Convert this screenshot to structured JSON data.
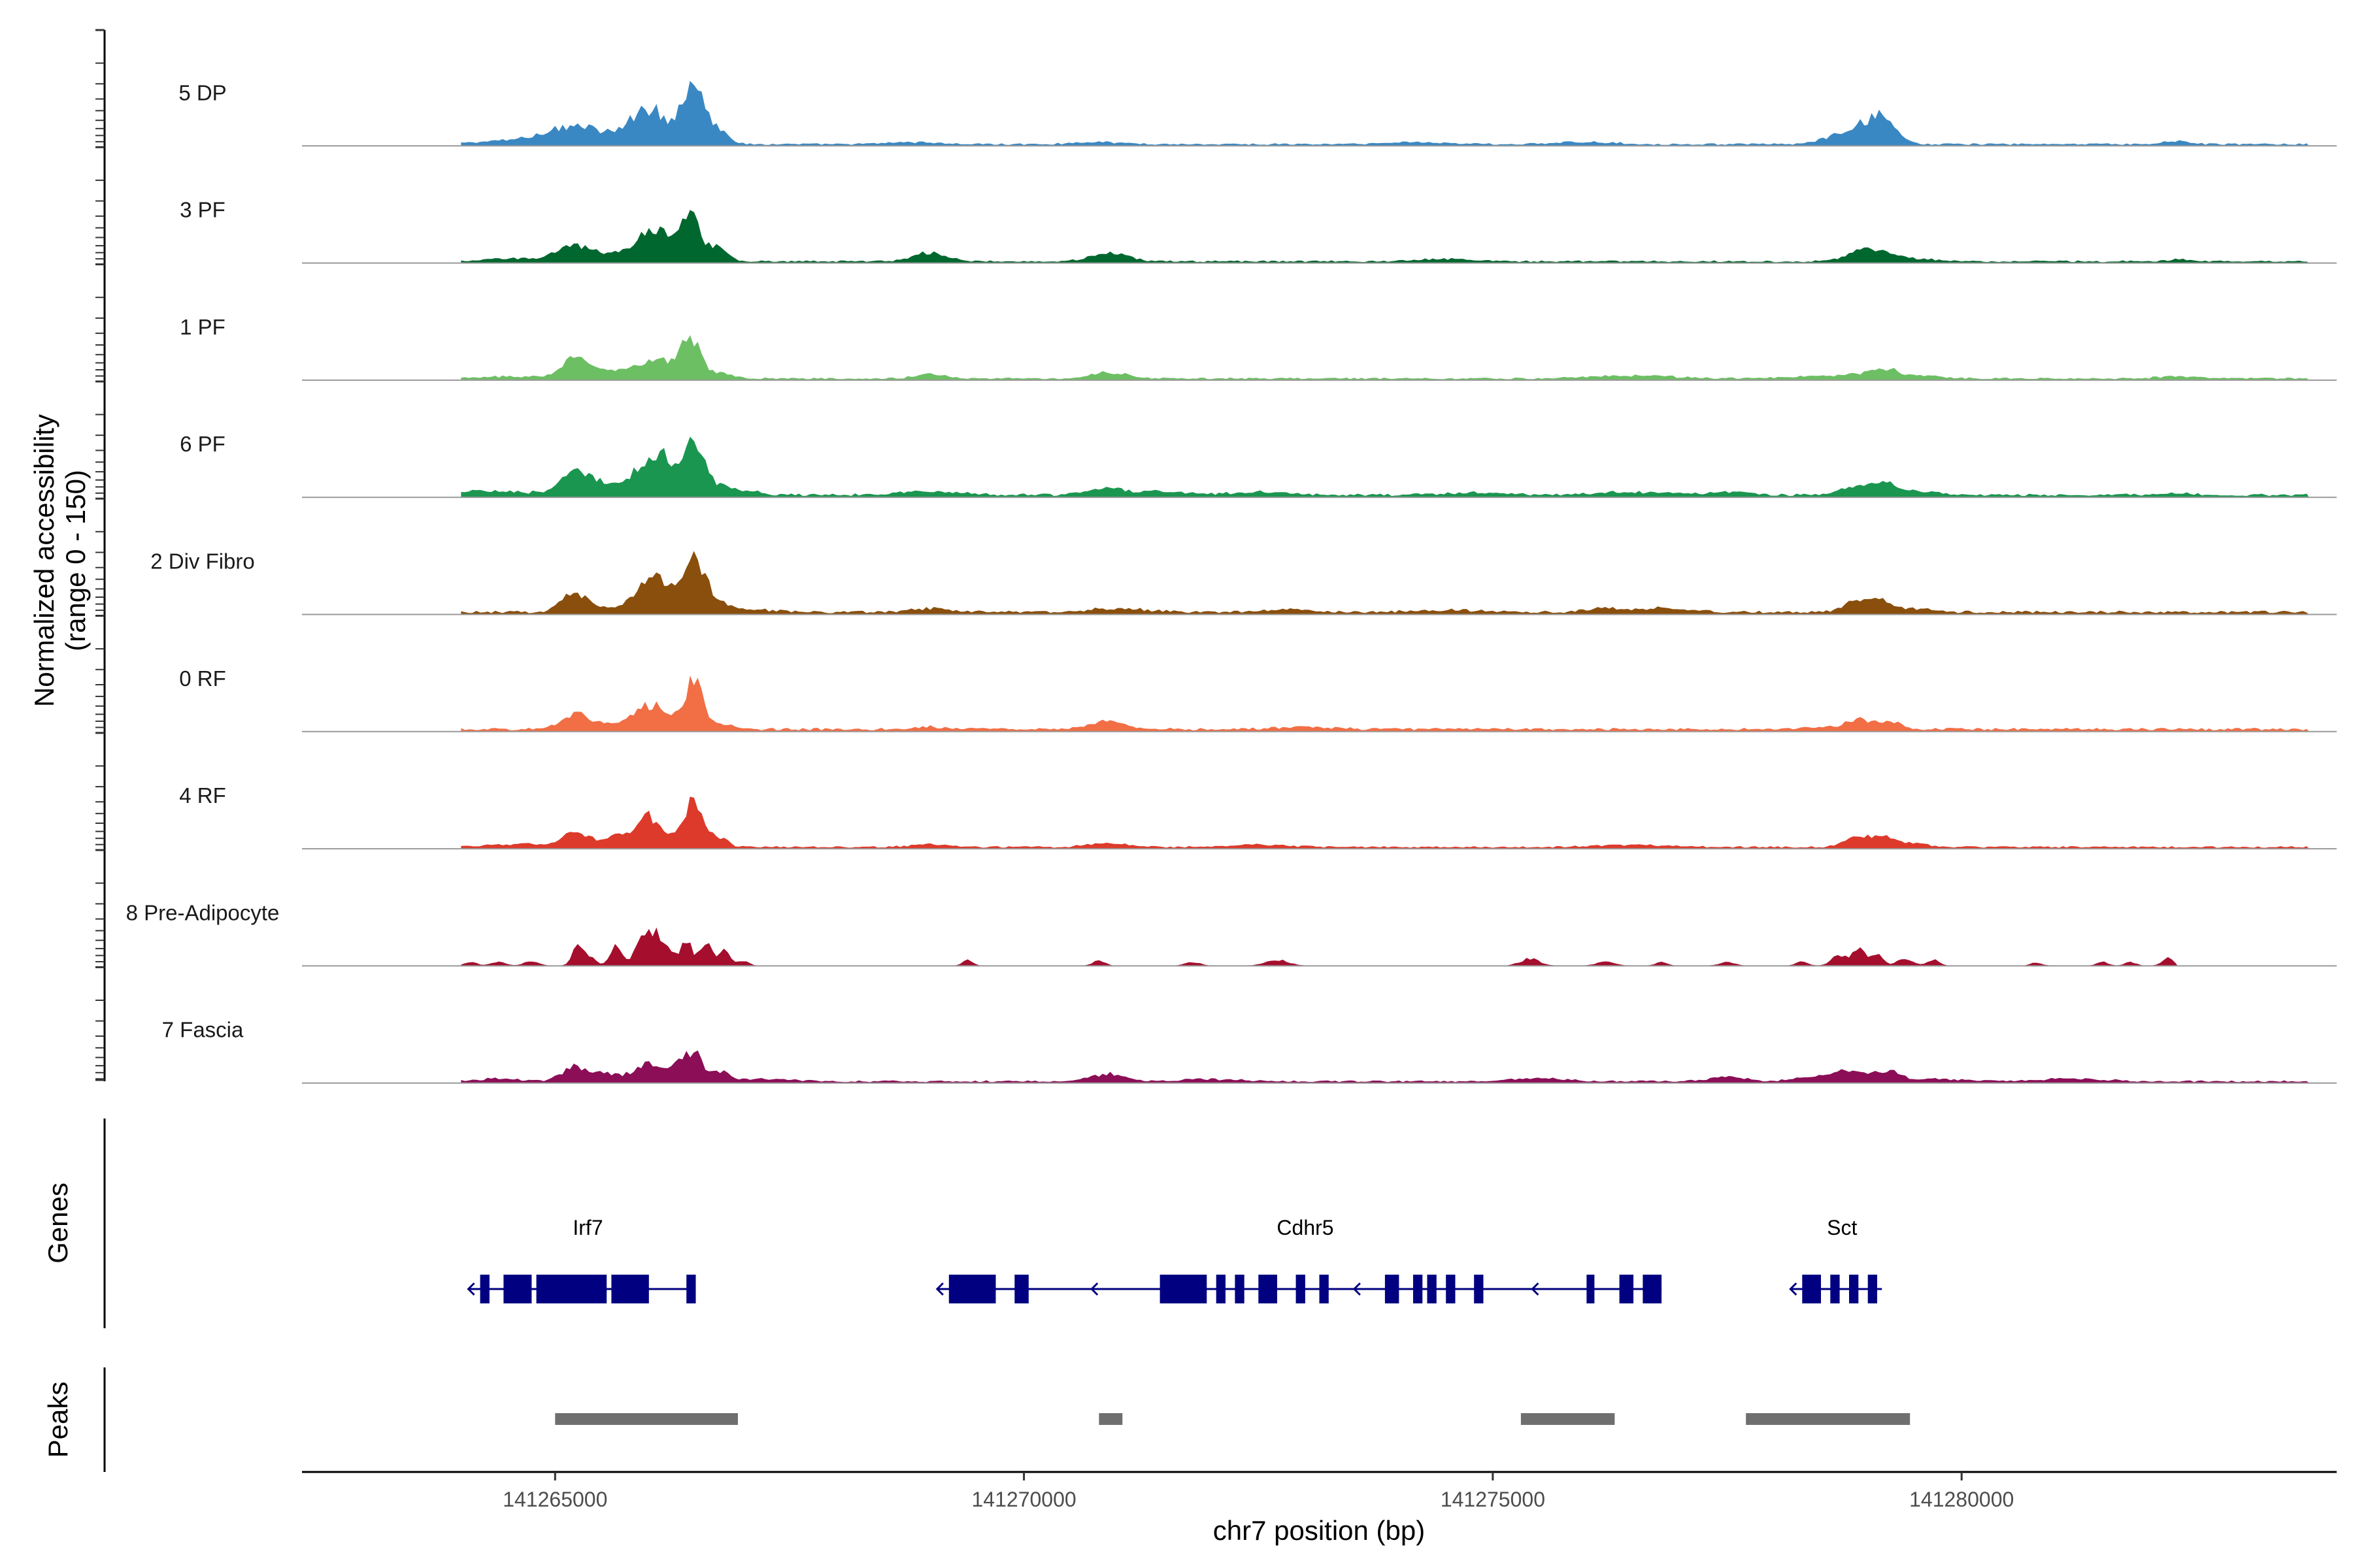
{
  "chart_data": {
    "type": "area",
    "title": "",
    "region": {
      "chrom": "chr7",
      "start": 141262300,
      "end": 141284000
    },
    "xlabel": "chr7 position (bp)",
    "ylabel": [
      "Normalized accessibility",
      "(range 0 - 150)"
    ],
    "ylim": [
      0,
      150
    ],
    "xticks": [
      141265000,
      141270000,
      141275000,
      141280000
    ],
    "xtick_labels": [
      "141265000",
      "141270000",
      "141275000",
      "141280000"
    ],
    "series": [
      {
        "name": "5 DP",
        "color": "#3a88c3",
        "peaks": [
          [
            141264400,
            3,
            350
          ],
          [
            141264900,
            8,
            300
          ],
          [
            141265150,
            14,
            220
          ],
          [
            141265400,
            10,
            200
          ],
          [
            141265700,
            6,
            200
          ],
          [
            141265950,
            30,
            170
          ],
          [
            141266050,
            22,
            150
          ],
          [
            141266450,
            82,
            120
          ],
          [
            141266580,
            20,
            80
          ],
          [
            141266780,
            17,
            90
          ],
          [
            141268800,
            3,
            250
          ],
          [
            141270800,
            3,
            250
          ],
          [
            141274200,
            3,
            300
          ],
          [
            141276000,
            3,
            300
          ],
          [
            141278750,
            14,
            200
          ],
          [
            141279000,
            10,
            150
          ],
          [
            141279150,
            30,
            150
          ],
          [
            141282300,
            5,
            120
          ]
        ],
        "base": 2,
        "span": [
          141264000,
          141283700
        ]
      },
      {
        "name": "3 PF",
        "color": "#00672f",
        "peaks": [
          [
            141264600,
            4,
            300
          ],
          [
            141265150,
            18,
            160
          ],
          [
            141265400,
            8,
            200
          ],
          [
            141265700,
            6,
            200
          ],
          [
            141266000,
            35,
            150
          ],
          [
            141266250,
            22,
            130
          ],
          [
            141266450,
            60,
            110
          ],
          [
            141266750,
            17,
            100
          ],
          [
            141269000,
            12,
            180
          ],
          [
            141270900,
            11,
            200
          ],
          [
            141274500,
            3,
            300
          ],
          [
            141278900,
            13,
            150
          ],
          [
            141279150,
            10,
            150
          ],
          [
            141279500,
            4,
            200
          ],
          [
            141282300,
            3,
            100
          ]
        ],
        "base": 2,
        "span": [
          141264000,
          141283700
        ]
      },
      {
        "name": "1 PF",
        "color": "#6dbf64",
        "peaks": [
          [
            141264600,
            3,
            300
          ],
          [
            141265200,
            24,
            150
          ],
          [
            141265450,
            9,
            150
          ],
          [
            141265700,
            6,
            200
          ],
          [
            141266000,
            22,
            150
          ],
          [
            141266250,
            14,
            120
          ],
          [
            141266450,
            52,
            100
          ],
          [
            141266750,
            9,
            120
          ],
          [
            141269000,
            7,
            150
          ],
          [
            141270900,
            9,
            180
          ],
          [
            141276500,
            4,
            400
          ],
          [
            141278400,
            3,
            300
          ],
          [
            141278900,
            5,
            200
          ],
          [
            141279200,
            11,
            150
          ],
          [
            141279600,
            3,
            200
          ],
          [
            141282300,
            3,
            200
          ]
        ],
        "base": 2,
        "span": [
          141264000,
          141283700
        ]
      },
      {
        "name": "6 PF",
        "color": "#1b9650",
        "peaks": [
          [
            141264200,
            5,
            150
          ],
          [
            141264600,
            4,
            300
          ],
          [
            141265200,
            30,
            130
          ],
          [
            141265450,
            12,
            150
          ],
          [
            141265700,
            9,
            200
          ],
          [
            141266000,
            45,
            150
          ],
          [
            141266200,
            30,
            110
          ],
          [
            141266480,
            74,
            110
          ],
          [
            141266800,
            14,
            100
          ],
          [
            141267100,
            5,
            120
          ],
          [
            141269000,
            5,
            300
          ],
          [
            141270900,
            10,
            200
          ],
          [
            141271500,
            5,
            200
          ],
          [
            141272500,
            4,
            300
          ],
          [
            141274800,
            3,
            300
          ],
          [
            141276500,
            4,
            400
          ],
          [
            141277500,
            4,
            200
          ],
          [
            141278900,
            10,
            200
          ],
          [
            141279200,
            14,
            150
          ],
          [
            141279600,
            4,
            200
          ],
          [
            141282300,
            3,
            150
          ]
        ],
        "base": 3,
        "span": [
          141264000,
          141283700
        ]
      },
      {
        "name": "2 Div Fibro",
        "color": "#8a4f0c",
        "peaks": [
          [
            141265200,
            24,
            130
          ],
          [
            141265450,
            6,
            150
          ],
          [
            141266000,
            50,
            150
          ],
          [
            141266200,
            20,
            110
          ],
          [
            141266500,
            70,
            120
          ],
          [
            141266800,
            12,
            100
          ],
          [
            141267200,
            3,
            200
          ],
          [
            141269000,
            5,
            200
          ],
          [
            141271000,
            5,
            300
          ],
          [
            141272800,
            4,
            200
          ],
          [
            141274500,
            3,
            300
          ],
          [
            141276200,
            5,
            200
          ],
          [
            141276800,
            5,
            300
          ],
          [
            141278900,
            16,
            140
          ],
          [
            141279150,
            14,
            120
          ],
          [
            141279550,
            5,
            150
          ]
        ],
        "base": 3,
        "span": [
          141264000,
          141283700
        ]
      },
      {
        "name": "0 RF",
        "color": "#f26e45",
        "peaks": [
          [
            141265200,
            22,
            130
          ],
          [
            141265450,
            6,
            150
          ],
          [
            141265800,
            8,
            150
          ],
          [
            141266000,
            26,
            130
          ],
          [
            141266200,
            18,
            110
          ],
          [
            141266480,
            66,
            100
          ],
          [
            141266800,
            8,
            100
          ],
          [
            141269000,
            3,
            200
          ],
          [
            141270900,
            12,
            180
          ],
          [
            141273000,
            3,
            300
          ],
          [
            141278500,
            3,
            200
          ],
          [
            141278900,
            12,
            140
          ],
          [
            141279200,
            10,
            150
          ]
        ],
        "base": 3,
        "span": [
          141264000,
          141283700
        ]
      },
      {
        "name": "4 RF",
        "color": "#dd3a2b",
        "peaks": [
          [
            141264600,
            4,
            300
          ],
          [
            141265200,
            18,
            140
          ],
          [
            141265450,
            6,
            150
          ],
          [
            141265700,
            14,
            120
          ],
          [
            141266000,
            40,
            120
          ],
          [
            141266200,
            10,
            100
          ],
          [
            141266480,
            64,
            100
          ],
          [
            141266750,
            12,
            90
          ],
          [
            141269000,
            4,
            200
          ],
          [
            141270900,
            6,
            200
          ],
          [
            141272500,
            3,
            300
          ],
          [
            141276500,
            3,
            400
          ],
          [
            141278900,
            14,
            140
          ],
          [
            141279200,
            12,
            150
          ],
          [
            141279500,
            4,
            150
          ]
        ],
        "base": 2,
        "span": [
          141264000,
          141283700
        ]
      },
      {
        "name": "8 Pre-Adipocyte",
        "color": "#a50e2d",
        "peaks": [
          [
            141264100,
            5,
            60
          ],
          [
            141264400,
            5,
            80
          ],
          [
            141264750,
            7,
            70
          ],
          [
            141265250,
            30,
            60
          ],
          [
            141265400,
            10,
            50
          ],
          [
            141265650,
            32,
            60
          ],
          [
            141265900,
            28,
            60
          ],
          [
            141266050,
            48,
            70
          ],
          [
            141266200,
            28,
            60
          ],
          [
            141266400,
            32,
            60
          ],
          [
            141266600,
            34,
            60
          ],
          [
            141266800,
            20,
            60
          ],
          [
            141267000,
            7,
            60
          ],
          [
            141269400,
            8,
            50
          ],
          [
            141270800,
            8,
            60
          ],
          [
            141271800,
            5,
            80
          ],
          [
            141272700,
            8,
            120
          ],
          [
            141275400,
            10,
            100
          ],
          [
            141276200,
            5,
            100
          ],
          [
            141276800,
            5,
            60
          ],
          [
            141277500,
            5,
            80
          ],
          [
            141278300,
            6,
            60
          ],
          [
            141278700,
            14,
            80
          ],
          [
            141278900,
            22,
            70
          ],
          [
            141279100,
            14,
            60
          ],
          [
            141279400,
            10,
            80
          ],
          [
            141279700,
            8,
            60
          ],
          [
            141280800,
            4,
            60
          ],
          [
            141281500,
            5,
            60
          ],
          [
            141281800,
            5,
            60
          ],
          [
            141282200,
            10,
            60
          ]
        ],
        "base": 0,
        "span": [
          141264000,
          141282300
        ]
      },
      {
        "name": "7 Fascia",
        "color": "#8b0e57",
        "peaks": [
          [
            141264400,
            4,
            200
          ],
          [
            141265200,
            20,
            130
          ],
          [
            141265450,
            7,
            150
          ],
          [
            141265700,
            6,
            200
          ],
          [
            141266000,
            24,
            130
          ],
          [
            141266200,
            10,
            100
          ],
          [
            141266450,
            42,
            110
          ],
          [
            141266750,
            13,
            100
          ],
          [
            141267200,
            3,
            300
          ],
          [
            141270900,
            10,
            180
          ],
          [
            141272000,
            3,
            300
          ],
          [
            141275500,
            4,
            300
          ],
          [
            141277500,
            6,
            200
          ],
          [
            141278400,
            6,
            200
          ],
          [
            141278800,
            16,
            140
          ],
          [
            141279200,
            14,
            140
          ],
          [
            141279700,
            3,
            300
          ],
          [
            141281200,
            4,
            300
          ]
        ],
        "base": 2,
        "span": [
          141264000,
          141283700
        ]
      }
    ],
    "genes": [
      {
        "name": "Irf7",
        "strand": "-",
        "start": 141264200,
        "end": 141266500,
        "exons": [
          [
            141264200,
            141264300
          ],
          [
            141264450,
            141264750
          ],
          [
            141264800,
            141265550
          ],
          [
            141265600,
            141266000
          ],
          [
            141266400,
            141266500
          ]
        ]
      },
      {
        "name": "Cdhr5",
        "strand": "-",
        "start": 141269200,
        "end": 141276800,
        "exons": [
          [
            141269200,
            141269700
          ],
          [
            141269900,
            141270050
          ],
          [
            141271450,
            141271950
          ],
          [
            141272050,
            141272150
          ],
          [
            141272250,
            141272350
          ],
          [
            141272500,
            141272700
          ],
          [
            141272900,
            141273000
          ],
          [
            141273150,
            141273250
          ],
          [
            141273850,
            141274000
          ],
          [
            141274150,
            141274250
          ],
          [
            141274300,
            141274400
          ],
          [
            141274500,
            141274600
          ],
          [
            141274800,
            141274900
          ],
          [
            141276000,
            141276050
          ],
          [
            141276350,
            141276500
          ],
          [
            141276600,
            141276800
          ]
        ]
      },
      {
        "name": "Sct",
        "strand": "-",
        "start": 141278300,
        "end": 141279150,
        "exons": [
          [
            141278300,
            141278500
          ],
          [
            141278600,
            141278700
          ],
          [
            141278800,
            141278900
          ],
          [
            141279000,
            141279100
          ]
        ]
      }
    ],
    "peaks": [
      [
        141265000,
        141266950
      ],
      [
        141270800,
        141271050
      ],
      [
        141275300,
        141276300
      ],
      [
        141277700,
        141279450
      ]
    ],
    "panel_labels": {
      "genes": "Genes",
      "peaks": "Peaks"
    },
    "colors": {
      "baseline": "#999999",
      "gene": "#000080",
      "peak": "#6f6f6f",
      "axis": "#000000"
    }
  }
}
